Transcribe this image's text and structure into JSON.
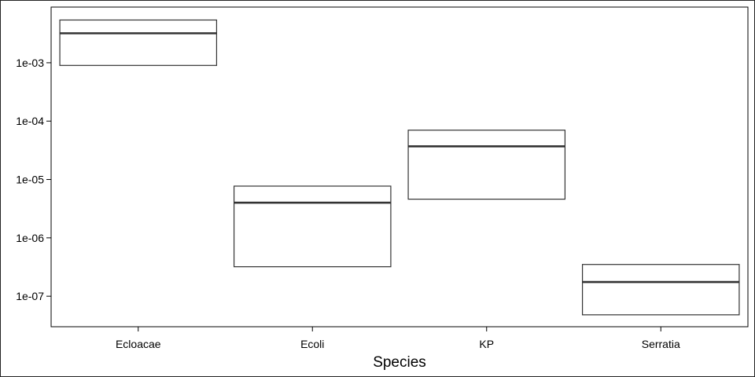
{
  "chart_data": {
    "type": "box",
    "title": "",
    "xlabel": "Species",
    "ylabel": "",
    "y_scale": "log10",
    "ylim": [
      3e-08,
      0.009
    ],
    "y_ticks": [
      1e-07,
      1e-06,
      1e-05,
      0.0001,
      0.001
    ],
    "y_tick_labels": [
      "1e-07",
      "1e-06",
      "1e-05",
      "1e-04",
      "1e-03"
    ],
    "categories": [
      "Ecloacae",
      "Ecoli",
      "KP",
      "Serratia"
    ],
    "boxes": [
      {
        "category": "Ecloacae",
        "q1": 0.0009,
        "median": 0.0032,
        "q3": 0.0054
      },
      {
        "category": "Ecoli",
        "q1": 3.2e-07,
        "median": 4e-06,
        "q3": 7.7e-06
      },
      {
        "category": "KP",
        "q1": 4.6e-06,
        "median": 3.7e-05,
        "q3": 7e-05
      },
      {
        "category": "Serratia",
        "q1": 4.8e-08,
        "median": 1.75e-07,
        "q3": 3.5e-07
      }
    ],
    "grid": false,
    "legend": "none",
    "colors": {
      "box_stroke": "#333333",
      "median": "#333333",
      "axis": "#000000"
    }
  }
}
